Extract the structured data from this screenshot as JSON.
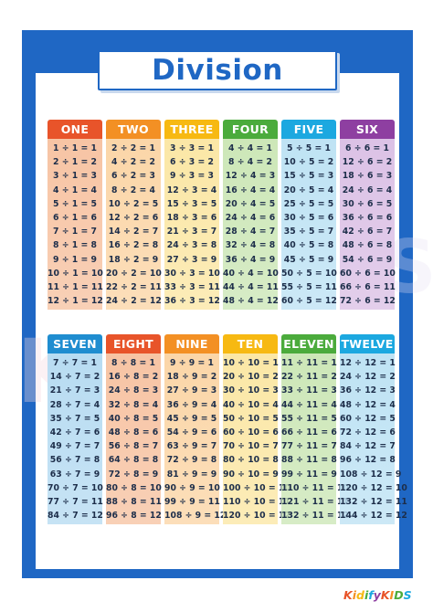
{
  "title": "Division",
  "colors": {
    "frame": "#1f67c4",
    "title": "#1f67c4"
  },
  "top_tables": [
    {
      "name": "ONE",
      "head": "#e8542a",
      "body": "#f7c4a4",
      "rows": [
        "1 ÷ 1 = 1",
        "2 ÷ 1 = 2",
        "3 ÷ 1 = 3",
        "4 ÷ 1 = 4",
        "5 ÷ 1 = 5",
        "6 ÷ 1 = 6",
        "7 ÷ 1 = 7",
        "8 ÷ 1 = 8",
        "9 ÷ 1 = 9",
        "10 ÷ 1 = 10",
        "11 ÷ 1 = 11",
        "12 ÷ 1 = 12"
      ]
    },
    {
      "name": "TWO",
      "head": "#f39024",
      "body": "#fbd6a8",
      "rows": [
        "2 ÷ 2 = 1",
        "4 ÷ 2 = 2",
        "6 ÷ 2 = 3",
        "8 ÷ 2 = 4",
        "10 ÷ 2 = 5",
        "12 ÷ 2 = 6",
        "14 ÷ 2 = 7",
        "16 ÷ 2 = 8",
        "18 ÷ 2 = 9",
        "20 ÷ 2 = 10",
        "22 ÷ 2 = 11",
        "24 ÷ 2 = 12"
      ]
    },
    {
      "name": "THREE",
      "head": "#f7b912",
      "body": "#fbe7a6",
      "rows": [
        "3 ÷ 3 = 1",
        "6 ÷ 3 = 2",
        "9 ÷ 3 = 3",
        "12 ÷ 3 = 4",
        "15 ÷ 3 = 5",
        "18 ÷ 3 = 6",
        "21 ÷ 3 = 7",
        "24 ÷ 3 = 8",
        "27 ÷ 3 = 9",
        "30 ÷ 3 = 10",
        "33 ÷ 3 = 11",
        "36 ÷ 3 = 12"
      ]
    },
    {
      "name": "FOUR",
      "head": "#4bab3c",
      "body": "#cde7b8",
      "rows": [
        "4 ÷ 4 = 1",
        "8 ÷ 4 = 2",
        "12 ÷ 4 = 3",
        "16 ÷ 4 = 4",
        "20 ÷ 4 = 5",
        "24 ÷ 4 = 6",
        "28 ÷ 4 = 7",
        "32 ÷ 4 = 8",
        "36 ÷ 4 = 9",
        "40 ÷ 4 = 10",
        "44 ÷ 4 = 11",
        "48 ÷ 4 = 12"
      ]
    },
    {
      "name": "FIVE",
      "head": "#1ca8e0",
      "body": "#bfe3f4",
      "rows": [
        "5 ÷ 5 = 1",
        "10 ÷ 5 = 2",
        "15 ÷ 5 = 3",
        "20 ÷ 5 = 4",
        "25 ÷ 5 = 5",
        "30 ÷ 5 = 6",
        "35 ÷ 5 = 7",
        "40 ÷ 5 = 8",
        "45 ÷ 5 = 9",
        "50 ÷ 5 = 10",
        "55 ÷ 5 = 11",
        "60 ÷ 5 = 12"
      ]
    },
    {
      "name": "SIX",
      "head": "#8e3fa1",
      "body": "#dcc2e6",
      "rows": [
        "6 ÷ 6 = 1",
        "12 ÷ 6 = 2",
        "18 ÷ 6 = 3",
        "24 ÷ 6 = 4",
        "30 ÷ 6 = 5",
        "36 ÷ 6 = 6",
        "42 ÷ 6 = 7",
        "48 ÷ 6 = 8",
        "54 ÷ 6 = 9",
        "60 ÷ 6 = 10",
        "66 ÷ 6 = 11",
        "72 ÷ 6 = 12"
      ]
    }
  ],
  "bottom_tables": [
    {
      "name": "SEVEN",
      "head": "#1f8dd0",
      "body": "#b8dcf2",
      "rows": [
        "7 ÷ 7 = 1",
        "14 ÷ 7 = 2",
        "21 ÷ 7 = 3",
        "28 ÷ 7 = 4",
        "35 ÷ 7 = 5",
        "42 ÷ 7 = 6",
        "49 ÷ 7 = 7",
        "56 ÷ 7 = 8",
        "63 ÷ 7 = 9",
        "70 ÷ 7 = 10",
        "77 ÷ 7 = 11",
        "84 ÷ 7 = 12"
      ]
    },
    {
      "name": "EIGHT",
      "head": "#e8542a",
      "body": "#f7c4a4",
      "rows": [
        "8 ÷ 8 = 1",
        "16 ÷ 8 = 2",
        "24 ÷ 8 = 3",
        "32 ÷ 8 = 4",
        "40 ÷ 8 = 5",
        "48 ÷ 8 = 6",
        "56 ÷ 8 = 7",
        "64 ÷ 8 = 8",
        "72 ÷ 8 = 9",
        "80 ÷ 8 = 10",
        "88 ÷ 8 = 11",
        "96 ÷ 8 = 12"
      ]
    },
    {
      "name": "NINE",
      "head": "#f39024",
      "body": "#fbd6a8",
      "rows": [
        "9 ÷ 9 = 1",
        "18 ÷ 9 = 2",
        "27 ÷ 9 = 3",
        "36 ÷ 9 = 4",
        "45 ÷ 9 = 5",
        "54 ÷ 9 = 6",
        "63 ÷ 9 = 7",
        "72 ÷ 9 = 8",
        "81 ÷ 9 = 9",
        "90 ÷ 9 = 10",
        "99 ÷ 9 = 11",
        "108 ÷ 9 = 12"
      ]
    },
    {
      "name": "TEN",
      "head": "#f7b912",
      "body": "#fbe7a6",
      "rows": [
        "10 ÷ 10 = 1",
        "20 ÷ 10 = 2",
        "30 ÷ 10 = 3",
        "40 ÷ 10 = 4",
        "50 ÷ 10 = 5",
        "60 ÷ 10 = 6",
        "70 ÷ 10 = 7",
        "80 ÷ 10 = 8",
        "90 ÷ 10 = 9",
        "100 ÷ 10 = 10",
        "110 ÷ 10 = 11",
        "120 ÷ 10 = 12"
      ]
    },
    {
      "name": "ELEVEN",
      "head": "#4bab3c",
      "body": "#cde7b8",
      "rows": [
        "11 ÷ 11 = 1",
        "22 ÷ 11 = 2",
        "33 ÷ 11 = 3",
        "44 ÷ 11 = 4",
        "55 ÷ 11 = 5",
        "66 ÷ 11 = 6",
        "77 ÷ 11 = 7",
        "88 ÷ 11 = 8",
        "99 ÷ 11 = 9",
        "110 ÷ 11 = 10",
        "121 ÷ 11 = 11",
        "132 ÷ 11 = 12"
      ]
    },
    {
      "name": "TWELVE",
      "head": "#1ca8e0",
      "body": "#bfe3f4",
      "rows": [
        "12 ÷ 12 = 1",
        "24 ÷ 12 = 2",
        "36 ÷ 12 = 3",
        "48 ÷ 12 = 4",
        "60 ÷ 12 = 5",
        "72 ÷ 12 = 6",
        "84 ÷ 12 = 7",
        "96 ÷ 12 = 8",
        "108 ÷ 12 = 9",
        "120 ÷ 12 = 10",
        "132 ÷ 12 = 11",
        "144 ÷ 12 = 12"
      ]
    }
  ],
  "logo": {
    "text": "KidifyKIDS",
    "letters": [
      {
        "ch": "K",
        "color": "#e8542a"
      },
      {
        "ch": "i",
        "color": "#f39024"
      },
      {
        "ch": "d",
        "color": "#f7b912"
      },
      {
        "ch": "i",
        "color": "#4bab3c"
      },
      {
        "ch": "f",
        "color": "#1ca8e0"
      },
      {
        "ch": "y",
        "color": "#8e3fa1"
      },
      {
        "ch": "K",
        "color": "#e8542a"
      },
      {
        "ch": "I",
        "color": "#f39024"
      },
      {
        "ch": "D",
        "color": "#4bab3c"
      },
      {
        "ch": "S",
        "color": "#1ca8e0"
      }
    ]
  }
}
